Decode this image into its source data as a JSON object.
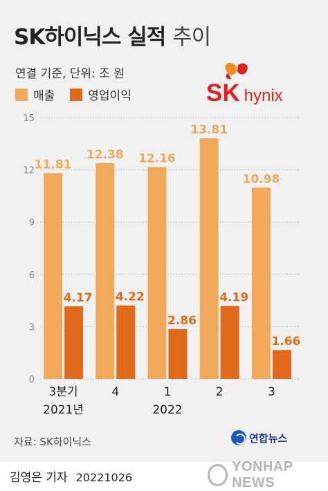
{
  "header": {
    "title_main": "SK하이닉스 실적",
    "title_tail": "추이",
    "subtitle": "연결 기준, 단위: 조 원"
  },
  "logo": {
    "sk": "SK",
    "hynix": "hynix"
  },
  "colors": {
    "revenue": "#f0a95a",
    "operating_profit": "#e0691a",
    "label_revenue": "#f0a95a",
    "label_profit": "#e0691a"
  },
  "chart_data": {
    "type": "bar",
    "categories": [
      "3분기\n2021년",
      "4",
      "1\n2022",
      "2",
      "3"
    ],
    "series": [
      {
        "name": "매출",
        "values": [
          11.81,
          12.38,
          12.16,
          13.81,
          10.98
        ],
        "labels": [
          "11.81",
          "12.38",
          "12.16",
          "13.81",
          "10.98"
        ]
      },
      {
        "name": "영업이익",
        "values": [
          4.17,
          4.22,
          2.86,
          4.19,
          1.66
        ],
        "labels": [
          "4.17",
          "4.22",
          "2.86",
          "4.19",
          "1.66"
        ]
      }
    ],
    "ylim": [
      0,
      15
    ],
    "yticks": [
      0,
      3,
      6,
      9,
      12,
      15
    ],
    "ytick_labels": [
      "0",
      "3",
      "6",
      "9",
      "12",
      "15"
    ],
    "grid": true,
    "legend": "top-left"
  },
  "footer": {
    "source": "자료: SK하이닉스",
    "agency": "연합뉴스",
    "byline": "김영은 기자",
    "date": "20221026",
    "watermark": "YONHAP NEWS"
  }
}
